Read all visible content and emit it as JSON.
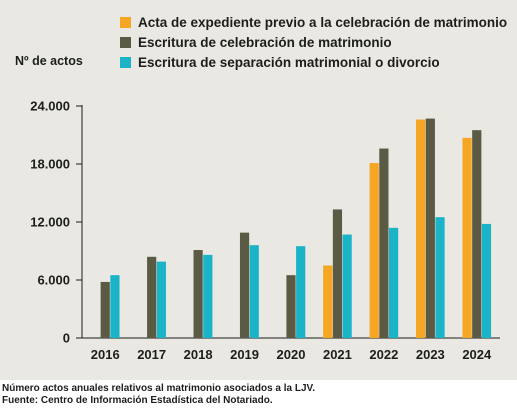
{
  "chart_data": {
    "type": "bar",
    "ylabel": "Nº de actos",
    "categories": [
      "2016",
      "2017",
      "2018",
      "2019",
      "2020",
      "2021",
      "2022",
      "2023",
      "2024"
    ],
    "yticks": [
      0,
      6000,
      12000,
      18000,
      24000
    ],
    "ytick_labels": [
      "0",
      "6.000",
      "12.000",
      "18.000",
      "24.000"
    ],
    "ylim": [
      0,
      24000
    ],
    "grid": false,
    "legend_position": "top",
    "series": [
      {
        "name": "Acta de expediente previo a la celebración de matrimonio",
        "color": "#f5a623",
        "values": [
          null,
          null,
          null,
          null,
          null,
          7500,
          18100,
          22600,
          20700
        ]
      },
      {
        "name": "Escritura de celebración de matrimonio",
        "color": "#5b5a45",
        "values": [
          5800,
          8400,
          9100,
          10900,
          6500,
          13300,
          19600,
          22700,
          21500
        ]
      },
      {
        "name": "Escritura de separación matrimonial o divorcio",
        "color": "#1ab3c7",
        "values": [
          6500,
          7900,
          8600,
          9600,
          9500,
          10700,
          11400,
          12500,
          11800
        ]
      }
    ]
  },
  "footer": {
    "line1": "Número actos anuales relativos al matrimonio asociados a la LJV.",
    "line2": "Fuente: Centro de Información Estadística del Notariado."
  }
}
